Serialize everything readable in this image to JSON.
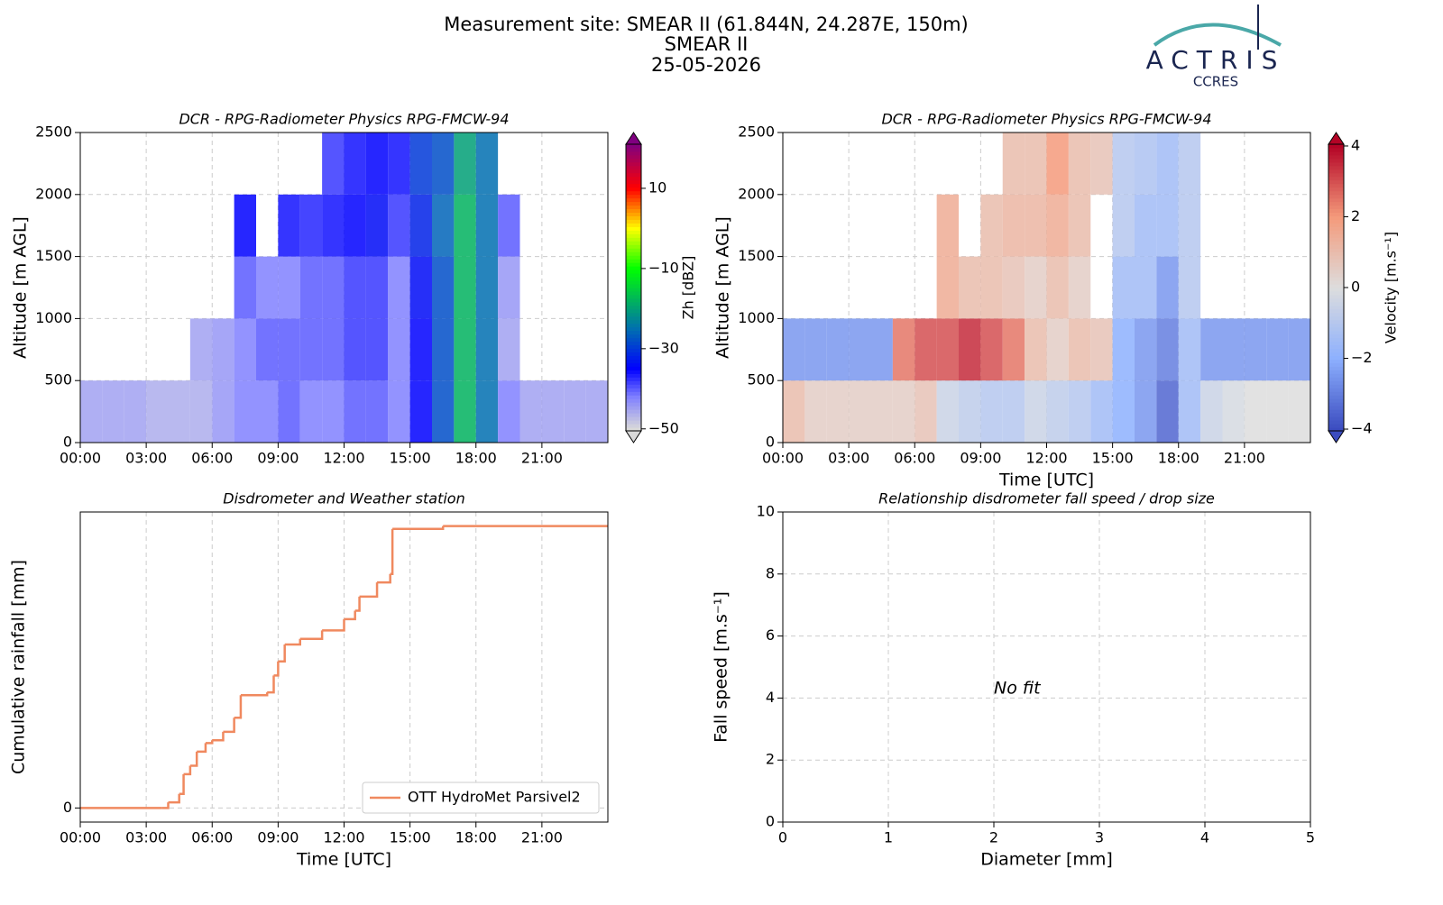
{
  "header": {
    "title": "Measurement site: SMEAR II (61.844N, 24.287E, 150m)",
    "site": "SMEAR II",
    "date": "25-05-2026"
  },
  "logo": {
    "name": "ACTRIS",
    "subtitle": "CCRES"
  },
  "chart_data": [
    {
      "type": "heatmap",
      "title": "DCR - RPG-Radiometer Physics RPG-FMCW-94",
      "ylabel": "Altitude [m AGL]",
      "x_bins": [
        0,
        1,
        2,
        3,
        4,
        5,
        6,
        7,
        8,
        9,
        10,
        11,
        12,
        13,
        14,
        15,
        16,
        17,
        18,
        19,
        20,
        21,
        22,
        23,
        24
      ],
      "y_bins": [
        0,
        500,
        1000,
        1500,
        2000,
        2500
      ],
      "values": [
        [
          -45,
          -45,
          -45,
          -46,
          -46,
          -46,
          -44,
          -42,
          -42,
          -40,
          -42,
          -42,
          -40,
          -40,
          -42,
          -35,
          -28,
          -18,
          -25,
          -42,
          -45,
          -45,
          -45,
          -45
        ],
        [
          null,
          null,
          null,
          null,
          null,
          -45,
          -44,
          -42,
          -40,
          -40,
          -40,
          -40,
          -38,
          -38,
          -42,
          -35,
          -28,
          -18,
          -25,
          -45,
          null,
          null,
          null,
          null
        ],
        [
          null,
          null,
          null,
          null,
          null,
          null,
          null,
          -40,
          -42,
          -42,
          -40,
          -40,
          -38,
          -38,
          -42,
          -34,
          -28,
          -18,
          -25,
          -44,
          null,
          null,
          null,
          null
        ],
        [
          null,
          null,
          null,
          null,
          null,
          null,
          null,
          -35,
          null,
          -36,
          -37,
          -36,
          -35,
          -34,
          -38,
          -32,
          -26,
          -18,
          -25,
          -40,
          null,
          null,
          null,
          null
        ],
        [
          null,
          null,
          null,
          null,
          null,
          null,
          null,
          null,
          null,
          null,
          null,
          -38,
          -36,
          -35,
          -36,
          -30,
          -28,
          -20,
          -25,
          null,
          null,
          null,
          null,
          null
        ]
      ],
      "xlim": [
        0,
        24
      ],
      "ylim": [
        0,
        2500
      ],
      "xticks": [
        {
          "value": 0,
          "label": "00:00"
        },
        {
          "value": 3,
          "label": "03:00"
        },
        {
          "value": 6,
          "label": "06:00"
        },
        {
          "value": 9,
          "label": "09:00"
        },
        {
          "value": 12,
          "label": "12:00"
        },
        {
          "value": 15,
          "label": "15:00"
        },
        {
          "value": 18,
          "label": "18:00"
        },
        {
          "value": 21,
          "label": "21:00"
        }
      ],
      "yticks": [
        0,
        500,
        1000,
        1500,
        2000,
        2500
      ],
      "grid": true,
      "colorbar": {
        "label": "Zh [dBZ]",
        "colormap": "reflectivity",
        "clim": [
          -50.5,
          21
        ],
        "ticks": [
          {
            "value": -50,
            "label": "−50"
          },
          {
            "value": -30,
            "label": "−30"
          },
          {
            "value": -10,
            "label": "−10"
          },
          10
        ]
      }
    },
    {
      "type": "heatmap",
      "title": "DCR - RPG-Radiometer Physics RPG-FMCW-94",
      "ylabel": "Altitude [m AGL]",
      "xlabel": "Time [UTC]",
      "x_bins": [
        0,
        1,
        2,
        3,
        4,
        5,
        6,
        7,
        8,
        9,
        10,
        11,
        12,
        13,
        14,
        15,
        16,
        17,
        18,
        19,
        20,
        21,
        22,
        23,
        24
      ],
      "y_bins": [
        0,
        500,
        1000,
        1500,
        2000,
        2500
      ],
      "values": [
        [
          1,
          0.5,
          0.5,
          0.5,
          0.5,
          0.5,
          0.8,
          -0.5,
          -0.8,
          -1,
          -1,
          -0.5,
          -0.8,
          -1,
          -1.5,
          -2,
          -2.5,
          -3.5,
          -1.5,
          -0.5,
          -0.2,
          0,
          0,
          0
        ],
        [
          -2.5,
          -2.5,
          -2.5,
          -2.5,
          -2.5,
          2.5,
          3,
          3,
          3.5,
          3,
          2.5,
          1,
          0.5,
          1,
          0.8,
          -2,
          -2.5,
          -3,
          -1.5,
          -2.5,
          -2.5,
          -2.5,
          -2.5,
          -2.5
        ],
        [
          null,
          null,
          null,
          null,
          null,
          null,
          null,
          1.5,
          1,
          1,
          0.8,
          0.5,
          1,
          0.5,
          null,
          -1.5,
          -1.5,
          -2.5,
          -1,
          null,
          null,
          null,
          null,
          null
        ],
        [
          null,
          null,
          null,
          null,
          null,
          null,
          null,
          1.5,
          null,
          1,
          1.2,
          1.2,
          1.5,
          1,
          null,
          -1,
          -1.5,
          -1.5,
          -1,
          null,
          null,
          null,
          null,
          null
        ],
        [
          null,
          null,
          null,
          null,
          null,
          null,
          null,
          null,
          null,
          null,
          1,
          1,
          2,
          1,
          0.8,
          -1,
          -1.2,
          -1.5,
          -1,
          null,
          null,
          null,
          null,
          null
        ]
      ],
      "xlim": [
        0,
        24
      ],
      "ylim": [
        0,
        2500
      ],
      "xticks": [
        {
          "value": 0,
          "label": "00:00"
        },
        {
          "value": 3,
          "label": "03:00"
        },
        {
          "value": 6,
          "label": "06:00"
        },
        {
          "value": 9,
          "label": "09:00"
        },
        {
          "value": 12,
          "label": "12:00"
        },
        {
          "value": 15,
          "label": "15:00"
        },
        {
          "value": 18,
          "label": "18:00"
        },
        {
          "value": 21,
          "label": "21:00"
        }
      ],
      "yticks": [
        0,
        500,
        1000,
        1500,
        2000,
        2500
      ],
      "grid": true,
      "colorbar": {
        "label": "Velocity [m.s⁻¹]",
        "colormap": "coolwarm",
        "clim": [
          -4.05,
          4.05
        ],
        "ticks": [
          {
            "value": -4,
            "label": "−4"
          },
          {
            "value": -2,
            "label": "−2"
          },
          0,
          2,
          4
        ]
      }
    },
    {
      "type": "line",
      "step": "post",
      "title": "Disdrometer and Weather station",
      "xlabel": "Time [UTC]",
      "ylabel": "Cumulative rainfall [mm]",
      "x": [
        0,
        3.7,
        4.0,
        4.5,
        4.7,
        5.0,
        5.3,
        5.7,
        6.0,
        6.5,
        7.0,
        7.3,
        8.5,
        8.8,
        9.0,
        9.3,
        10.0,
        11.0,
        12.0,
        12.5,
        12.7,
        13.5,
        14.1,
        14.2,
        16.5,
        24
      ],
      "series": [
        {
          "name": "OTT HydroMet Parsivel2",
          "color": "#f0895f",
          "values": [
            0,
            0,
            0.02,
            0.05,
            0.12,
            0.15,
            0.2,
            0.23,
            0.24,
            0.27,
            0.32,
            0.4,
            0.41,
            0.47,
            0.52,
            0.58,
            0.6,
            0.63,
            0.67,
            0.7,
            0.75,
            0.8,
            0.83,
            0.99,
            1.0,
            1.0
          ]
        }
      ],
      "xlim": [
        0,
        24
      ],
      "ylim": [
        -0.05,
        1.05
      ],
      "xticks": [
        {
          "value": 0,
          "label": "00:00"
        },
        {
          "value": 3,
          "label": "03:00"
        },
        {
          "value": 6,
          "label": "06:00"
        },
        {
          "value": 9,
          "label": "09:00"
        },
        {
          "value": 12,
          "label": "12:00"
        },
        {
          "value": 15,
          "label": "15:00"
        },
        {
          "value": 18,
          "label": "18:00"
        },
        {
          "value": 21,
          "label": "21:00"
        }
      ],
      "yticks": [
        0
      ],
      "grid": true,
      "legend": "lower right"
    },
    {
      "type": "scatter",
      "title": "Relationship disdrometer fall speed / drop size",
      "xlabel": "Diameter [mm]",
      "ylabel": "Fall speed [m.s⁻¹]",
      "annotation": "No fit",
      "xlim": [
        0,
        5
      ],
      "ylim": [
        0,
        10
      ],
      "xticks": [
        0,
        1,
        2,
        3,
        4,
        5
      ],
      "yticks": [
        0,
        2,
        4,
        6,
        8,
        10
      ],
      "grid": true
    }
  ]
}
